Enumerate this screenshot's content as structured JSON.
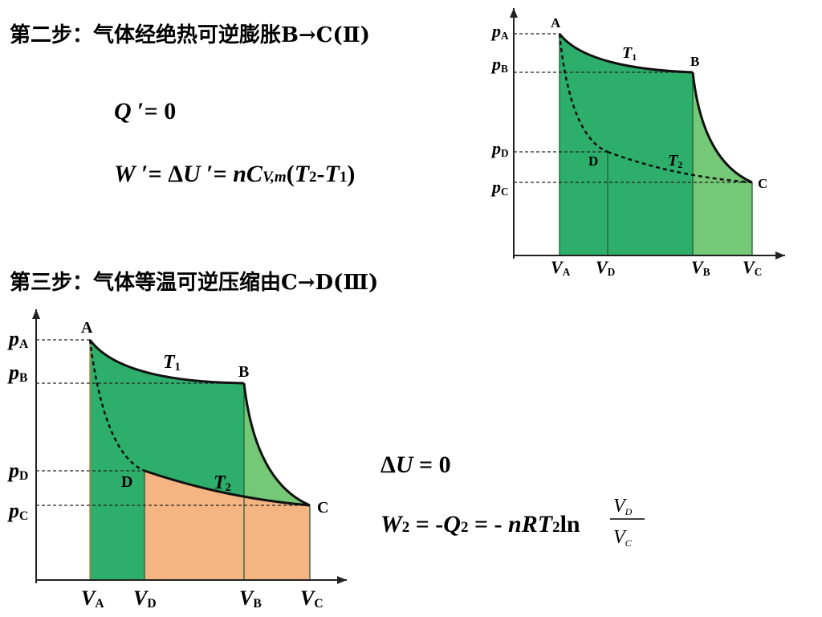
{
  "step2": {
    "title": "第二步：气体经绝热可逆膨胀B→C(Ⅱ)",
    "equations": [
      [
        "Q",
        " ′= 0"
      ],
      [
        "W",
        " ′= Δ",
        "U",
        " ′= ",
        "nC",
        "V,m",
        "(",
        "T",
        "2",
        "-",
        "T",
        "1",
        ")"
      ]
    ]
  },
  "step3": {
    "title": "第三步：气体等温可逆压缩由C→D(Ⅲ)",
    "equations": [
      [
        "Δ",
        "U",
        " =  0"
      ],
      [
        "W",
        "2",
        " =  -",
        "Q",
        "2",
        " = - ",
        "nRT",
        "2",
        "ln",
        "V",
        "D",
        "V",
        "C"
      ]
    ]
  },
  "diagrams": [
    {
      "pressure_labels": [
        [
          "p",
          "A"
        ],
        [
          "p",
          "B"
        ],
        [
          "p",
          "D"
        ],
        [
          "p",
          "C"
        ]
      ],
      "volume_labels": [
        [
          "V",
          "A"
        ],
        [
          "V",
          "D"
        ],
        [
          "V",
          "B"
        ],
        [
          "V",
          "C"
        ]
      ],
      "points": [
        "A",
        "B",
        "C",
        "D"
      ],
      "isotherms": [
        [
          "T",
          "1"
        ],
        [
          "T",
          "2"
        ]
      ]
    },
    {
      "pressure_labels": [
        [
          "p",
          "A"
        ],
        [
          "p",
          "B"
        ],
        [
          "p",
          "D"
        ],
        [
          "p",
          "C"
        ]
      ],
      "volume_labels": [
        [
          "V",
          "A"
        ],
        [
          "V",
          "D"
        ],
        [
          "V",
          "B"
        ],
        [
          "V",
          "C"
        ]
      ],
      "points": [
        "A",
        "B",
        "C",
        "D"
      ],
      "isotherms": [
        [
          "T",
          "1"
        ],
        [
          "T",
          "2"
        ]
      ]
    }
  ]
}
